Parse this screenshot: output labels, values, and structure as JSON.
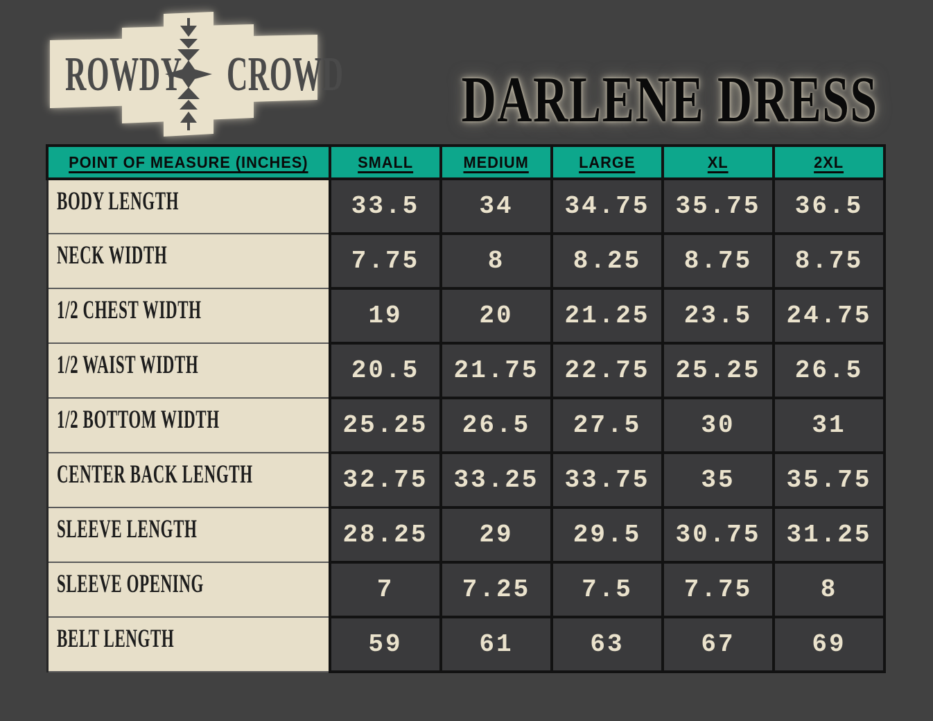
{
  "logo": {
    "word_left": "ROWDY",
    "word_right": "CROWD"
  },
  "title": "DARLENE DRESS",
  "table": {
    "header": [
      "POINT OF MEASURE (INCHES)",
      "SMALL",
      "MEDIUM",
      "LARGE",
      "XL",
      "2XL"
    ],
    "rows": [
      {
        "label": "BODY LENGTH",
        "values": [
          "33.5",
          "34",
          "34.75",
          "35.75",
          "36.5"
        ]
      },
      {
        "label": "NECK WIDTH",
        "values": [
          "7.75",
          "8",
          "8.25",
          "8.75",
          "8.75"
        ]
      },
      {
        "label": "1/2 CHEST WIDTH",
        "values": [
          "19",
          "20",
          "21.25",
          "23.5",
          "24.75"
        ]
      },
      {
        "label": "1/2 WAIST WIDTH",
        "values": [
          "20.5",
          "21.75",
          "22.75",
          "25.25",
          "26.5"
        ]
      },
      {
        "label": "1/2 BOTTOM WIDTH",
        "values": [
          "25.25",
          "26.5",
          "27.5",
          "30",
          "31"
        ]
      },
      {
        "label": "CENTER BACK LENGTH",
        "values": [
          "32.75",
          "33.25",
          "33.75",
          "35",
          "35.75"
        ]
      },
      {
        "label": "SLEEVE LENGTH",
        "values": [
          "28.25",
          "29",
          "29.5",
          "30.75",
          "31.25"
        ]
      },
      {
        "label": "SLEEVE OPENING",
        "values": [
          "7",
          "7.25",
          "7.5",
          "7.75",
          "8"
        ]
      },
      {
        "label": "BELT LENGTH",
        "values": [
          "59",
          "61",
          "63",
          "67",
          "69"
        ]
      }
    ]
  },
  "colors": {
    "page_bg": "#414141",
    "teal": "#0da78c",
    "cream": "#e7dfc9",
    "cell_dark": "#3a3a3c",
    "border_black": "#121212",
    "number_cream": "#eae2cc",
    "label_ink": "#1c1c1c",
    "row_divider": "#5a5a5a",
    "logo_cream": "#e9e1cb",
    "logo_ink": "#4a4a4a",
    "title_ink": "#0a0a0a",
    "title_glow": "#cfc7b2"
  }
}
